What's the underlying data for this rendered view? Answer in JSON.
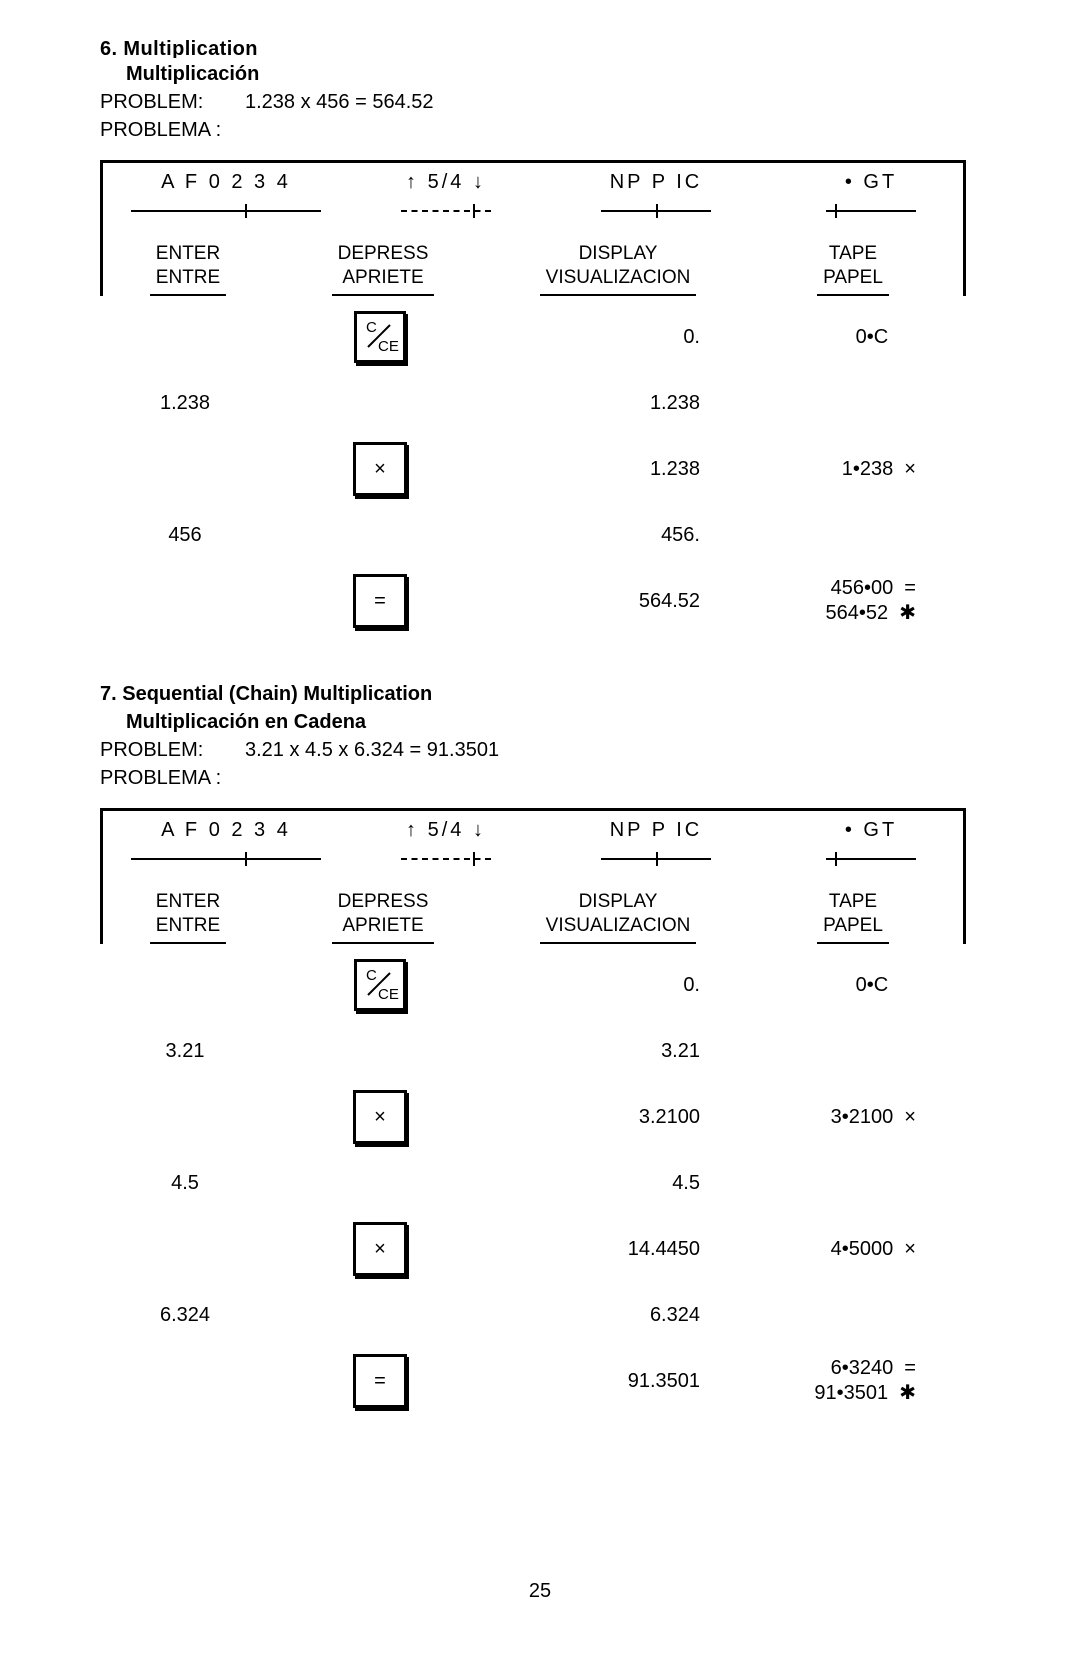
{
  "page_number": "25",
  "section6": {
    "title_en_cut": "6. Multiplication",
    "title_es": "Multiplicación",
    "problem_label_en": "PROBLEM:",
    "problem_label_es": "PROBLEMA :",
    "problem_expr": "1.238 x 456  =  564.52",
    "switches": {
      "s1": "A F 0 2 3 4",
      "s2": "↑ 5/4 ↓",
      "s3": "NP P IC",
      "s4": "•  GT"
    },
    "heads": {
      "c1a": "ENTER",
      "c1b": "ENTRE",
      "c2a": "DEPRESS",
      "c2b": "APRIETE",
      "c3a": "DISPLAY",
      "c3b": "VISUALIZACION",
      "c4a": "TAPE",
      "c4b": "PAPEL"
    },
    "rows": [
      {
        "enter": "",
        "key": "cce",
        "display": "0.",
        "tape": "0•C     "
      },
      {
        "enter": "1.238",
        "key": "",
        "display": "1.238",
        "tape": ""
      },
      {
        "enter": "",
        "key": "×",
        "display": "1.238",
        "tape": "1•238  ×"
      },
      {
        "enter": "456",
        "key": "",
        "display": "456.",
        "tape": ""
      },
      {
        "enter": "",
        "key": "=",
        "display": "564.52",
        "tape": "456•00  =\n564•52  ✱"
      }
    ]
  },
  "section7": {
    "title_en": "7. Sequential (Chain) Multiplication",
    "title_es": "Multiplicación en Cadena",
    "problem_label_en": "PROBLEM:",
    "problem_label_es": "PROBLEMA :",
    "problem_expr": "3.21 x 4.5 x 6.324  =  91.3501",
    "switches": {
      "s1": "A F 0 2 3 4",
      "s2": "↑ 5/4 ↓",
      "s3": "NP P IC",
      "s4": "•  GT"
    },
    "heads": {
      "c1a": "ENTER",
      "c1b": "ENTRE",
      "c2a": "DEPRESS",
      "c2b": "APRIETE",
      "c3a": "DISPLAY",
      "c3b": "VISUALIZACION",
      "c4a": "TAPE",
      "c4b": "PAPEL"
    },
    "rows": [
      {
        "enter": "",
        "key": "cce",
        "display": "0.",
        "tape": "0•C     "
      },
      {
        "enter": "3.21",
        "key": "",
        "display": "3.21",
        "tape": ""
      },
      {
        "enter": "",
        "key": "×",
        "display": "3.2100",
        "tape": "3•2100  ×"
      },
      {
        "enter": "4.5",
        "key": "",
        "display": "4.5",
        "tape": ""
      },
      {
        "enter": "",
        "key": "×",
        "display": "14.4450",
        "tape": "4•5000  ×"
      },
      {
        "enter": "6.324",
        "key": "",
        "display": "6.324",
        "tape": ""
      },
      {
        "enter": "",
        "key": "=",
        "display": "91.3501",
        "tape": "6•3240  =\n91•3501  ✱"
      }
    ]
  }
}
